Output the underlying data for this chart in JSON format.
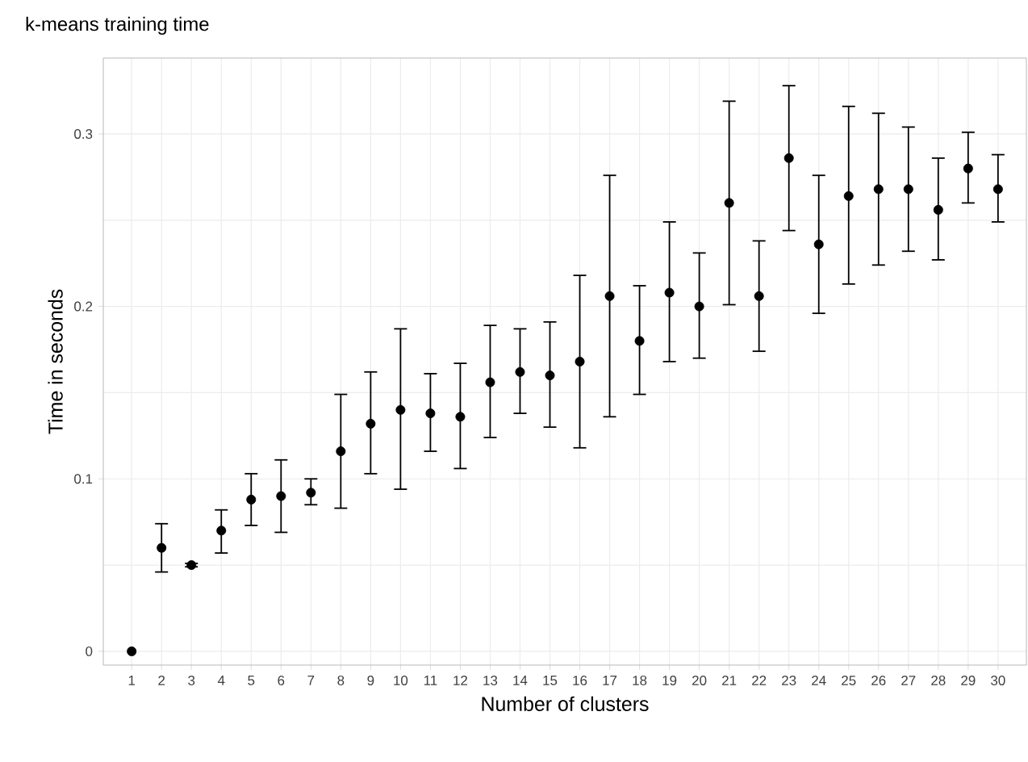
{
  "chart_data": {
    "type": "scatter",
    "title": "k-means training time",
    "xlabel": "Number of clusters",
    "ylabel": "Time in seconds",
    "x": [
      1,
      2,
      3,
      4,
      5,
      6,
      7,
      8,
      9,
      10,
      11,
      12,
      13,
      14,
      15,
      16,
      17,
      18,
      19,
      20,
      21,
      22,
      23,
      24,
      25,
      26,
      27,
      28,
      29,
      30
    ],
    "values": [
      0,
      0.06,
      0.05,
      0.07,
      0.088,
      0.09,
      0.092,
      0.116,
      0.132,
      0.14,
      0.138,
      0.136,
      0.156,
      0.162,
      0.16,
      0.168,
      0.206,
      0.18,
      0.208,
      0.2,
      0.26,
      0.206,
      0.286,
      0.236,
      0.264,
      0.268,
      0.268,
      0.256,
      0.28,
      0.268
    ],
    "errors": [
      null,
      [
        0.046,
        0.074
      ],
      [
        0.049,
        0.051
      ],
      [
        0.057,
        0.082
      ],
      [
        0.073,
        0.103
      ],
      [
        0.069,
        0.111
      ],
      [
        0.085,
        0.1
      ],
      [
        0.083,
        0.149
      ],
      [
        0.103,
        0.162
      ],
      [
        0.094,
        0.187
      ],
      [
        0.116,
        0.161
      ],
      [
        0.106,
        0.167
      ],
      [
        0.124,
        0.189
      ],
      [
        0.138,
        0.187
      ],
      [
        0.13,
        0.191
      ],
      [
        0.118,
        0.218
      ],
      [
        0.136,
        0.276
      ],
      [
        0.149,
        0.212
      ],
      [
        0.168,
        0.249
      ],
      [
        0.17,
        0.231
      ],
      [
        0.201,
        0.319
      ],
      [
        0.174,
        0.238
      ],
      [
        0.244,
        0.328
      ],
      [
        0.196,
        0.276
      ],
      [
        0.213,
        0.316
      ],
      [
        0.224,
        0.312
      ],
      [
        0.232,
        0.304
      ],
      [
        0.227,
        0.286
      ],
      [
        0.26,
        0.301
      ],
      [
        0.249,
        0.288
      ]
    ],
    "color": "#000000",
    "marker": "circle",
    "grid": true,
    "xlim": [
      0.05,
      30.95
    ],
    "ylim": [
      -0.008,
      0.344
    ],
    "xticks": [
      1,
      2,
      3,
      4,
      5,
      6,
      7,
      8,
      9,
      10,
      11,
      12,
      13,
      14,
      15,
      16,
      17,
      18,
      19,
      20,
      21,
      22,
      23,
      24,
      25,
      26,
      27,
      28,
      29,
      30
    ],
    "yticks": [
      0,
      0.1,
      0.2,
      0.3
    ]
  }
}
